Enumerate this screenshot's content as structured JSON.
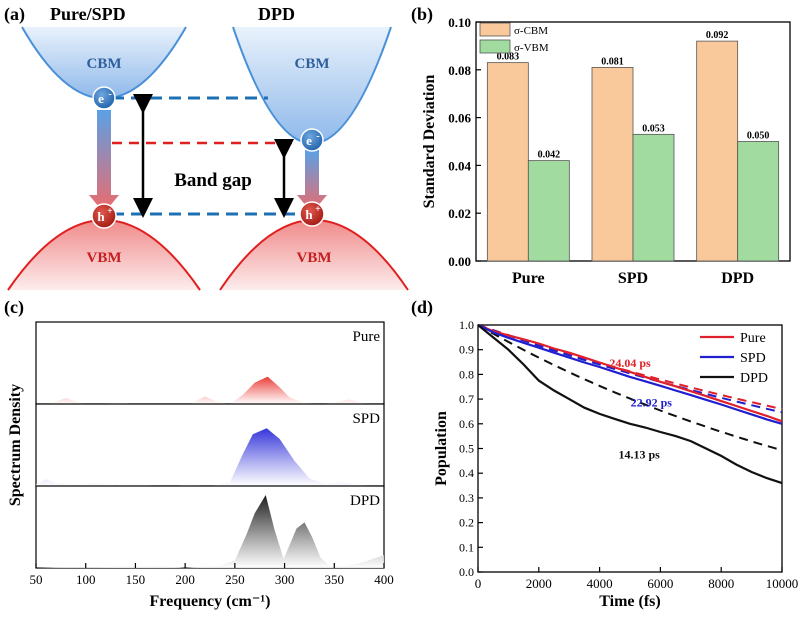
{
  "panel_labels": {
    "a": "(a)",
    "b": "(b)",
    "c": "(c)",
    "d": "(d)"
  },
  "schematic": {
    "left_title": "Pure/SPD",
    "right_title": "DPD",
    "cbm": "CBM",
    "vbm": "VBM",
    "electron": "e",
    "hole": "h",
    "charge_electron": "-",
    "charge_hole": "+",
    "band_gap": "Band gap",
    "colors": {
      "cbm_fill": "#a9c8ec",
      "cbm_line": "#4a90d9",
      "vbm_fill": "#f4a6a6",
      "vbm_line": "#e02020",
      "carrier": "#c0281e",
      "dash_blue": "#1f6fb5",
      "dash_red": "#e02020"
    }
  },
  "chart_data": [
    {
      "id": "b",
      "type": "bar",
      "categories": [
        "Pure",
        "SPD",
        "DPD"
      ],
      "series": [
        {
          "name": "σ-CBM",
          "values": [
            0.083,
            0.081,
            0.092
          ],
          "labels": [
            "0.083",
            "0.081",
            "0.092"
          ],
          "color": "#f9c89b"
        },
        {
          "name": "σ-VBM",
          "values": [
            0.042,
            0.053,
            0.05
          ],
          "labels": [
            "0.042",
            "0.053",
            "0.050"
          ],
          "color": "#a2dba0"
        }
      ],
      "ylabel": "Standard Deviation",
      "ylim": [
        0.0,
        0.1
      ],
      "yticks": [
        "0.00",
        "0.02",
        "0.04",
        "0.06",
        "0.08",
        "0.10"
      ],
      "legend_position": "top-left"
    },
    {
      "id": "c",
      "type": "area",
      "xlabel": "Frequency (cm⁻¹)",
      "ylabel": "Spectrum Density",
      "xlim": [
        50,
        400
      ],
      "xticks": [
        "50",
        "100",
        "150",
        "200",
        "250",
        "300",
        "350",
        "400"
      ],
      "series": [
        {
          "name": "Pure",
          "color": "#e8302a",
          "points": [
            [
              50,
              0.0
            ],
            [
              65,
              0.01
            ],
            [
              80,
              0.08
            ],
            [
              95,
              0.01
            ],
            [
              110,
              0.0
            ],
            [
              135,
              0.02
            ],
            [
              150,
              0.0
            ],
            [
              205,
              0.0
            ],
            [
              220,
              0.1
            ],
            [
              232,
              0.03
            ],
            [
              245,
              0.0
            ],
            [
              258,
              0.12
            ],
            [
              270,
              0.28
            ],
            [
              283,
              0.36
            ],
            [
              295,
              0.22
            ],
            [
              305,
              0.09
            ],
            [
              318,
              0.02
            ],
            [
              335,
              0.0
            ],
            [
              350,
              0.02
            ],
            [
              365,
              0.06
            ],
            [
              380,
              0.01
            ],
            [
              400,
              0.0
            ]
          ]
        },
        {
          "name": "SPD",
          "color": "#2a2ad8",
          "points": [
            [
              50,
              0.02
            ],
            [
              60,
              0.09
            ],
            [
              70,
              0.04
            ],
            [
              90,
              0.01
            ],
            [
              110,
              0.04
            ],
            [
              130,
              0.01
            ],
            [
              150,
              0.03
            ],
            [
              165,
              0.01
            ],
            [
              185,
              0.0
            ],
            [
              205,
              0.02
            ],
            [
              225,
              0.0
            ],
            [
              245,
              0.05
            ],
            [
              258,
              0.42
            ],
            [
              268,
              0.68
            ],
            [
              282,
              0.76
            ],
            [
              295,
              0.62
            ],
            [
              310,
              0.33
            ],
            [
              325,
              0.1
            ],
            [
              340,
              0.03
            ],
            [
              360,
              0.05
            ],
            [
              380,
              0.01
            ],
            [
              400,
              0.0
            ]
          ]
        },
        {
          "name": "DPD",
          "color": "#1a1a1a",
          "points": [
            [
              50,
              0.0
            ],
            [
              80,
              0.01
            ],
            [
              110,
              0.01
            ],
            [
              140,
              0.02
            ],
            [
              175,
              0.03
            ],
            [
              200,
              0.0
            ],
            [
              235,
              0.03
            ],
            [
              250,
              0.1
            ],
            [
              262,
              0.45
            ],
            [
              270,
              0.72
            ],
            [
              281,
              0.96
            ],
            [
              290,
              0.5
            ],
            [
              299,
              0.12
            ],
            [
              305,
              0.3
            ],
            [
              312,
              0.52
            ],
            [
              320,
              0.6
            ],
            [
              328,
              0.4
            ],
            [
              336,
              0.14
            ],
            [
              345,
              0.03
            ],
            [
              360,
              0.02
            ],
            [
              380,
              0.08
            ],
            [
              400,
              0.17
            ]
          ]
        }
      ]
    },
    {
      "id": "d",
      "type": "line",
      "xlabel": "Time (fs)",
      "ylabel": "Population",
      "xlim": [
        0,
        10000
      ],
      "ylim": [
        0.0,
        1.0
      ],
      "xticks": [
        "0",
        "2000",
        "4000",
        "6000",
        "8000",
        "10000"
      ],
      "yticks": [
        "0.0",
        "0.1",
        "0.2",
        "0.3",
        "0.4",
        "0.5",
        "0.6",
        "0.7",
        "0.8",
        "0.9",
        "1.0"
      ],
      "legend_position": "top-right",
      "series": [
        {
          "name": "Pure",
          "color": "#e0202a",
          "x": [
            0,
            500,
            1000,
            1500,
            2000,
            2500,
            3000,
            3500,
            4000,
            4500,
            5000,
            5500,
            6000,
            6500,
            7000,
            7500,
            8000,
            8500,
            9000,
            9500,
            10000
          ],
          "y": [
            1.0,
            0.975,
            0.958,
            0.942,
            0.925,
            0.905,
            0.888,
            0.868,
            0.848,
            0.828,
            0.81,
            0.79,
            0.77,
            0.752,
            0.732,
            0.712,
            0.692,
            0.672,
            0.652,
            0.632,
            0.61
          ]
        },
        {
          "name": "SPD",
          "color": "#1f1fd0",
          "x": [
            0,
            500,
            1000,
            1500,
            2000,
            2500,
            3000,
            3500,
            4000,
            4500,
            5000,
            5500,
            6000,
            6500,
            7000,
            7500,
            8000,
            8500,
            9000,
            9500,
            10000
          ],
          "y": [
            1.0,
            0.97,
            0.948,
            0.928,
            0.908,
            0.888,
            0.868,
            0.848,
            0.83,
            0.81,
            0.79,
            0.772,
            0.754,
            0.735,
            0.716,
            0.697,
            0.678,
            0.658,
            0.638,
            0.618,
            0.6
          ]
        },
        {
          "name": "DPD",
          "color": "#111111",
          "x": [
            0,
            500,
            1000,
            1500,
            2000,
            2500,
            3000,
            3500,
            4000,
            4500,
            5000,
            5500,
            6000,
            6500,
            7000,
            7500,
            8000,
            8500,
            9000,
            9500,
            10000
          ],
          "y": [
            1.0,
            0.95,
            0.9,
            0.84,
            0.775,
            0.735,
            0.7,
            0.665,
            0.64,
            0.62,
            0.6,
            0.585,
            0.567,
            0.55,
            0.53,
            0.5,
            0.47,
            0.435,
            0.405,
            0.38,
            0.36
          ]
        }
      ],
      "fits": [
        {
          "name": "Pure fit",
          "tau": 24.04,
          "color": "#e0202a",
          "label": "24.04 ps",
          "label_at": [
            5000,
            0.83
          ]
        },
        {
          "name": "SPD fit",
          "tau": 22.92,
          "color": "#1f1fd0",
          "label": "22.92 ps",
          "label_at": [
            5700,
            0.67
          ]
        },
        {
          "name": "DPD fit",
          "tau": 14.13,
          "color": "#111111",
          "label": "14.13 ps",
          "label_at": [
            5300,
            0.46
          ]
        }
      ]
    }
  ]
}
